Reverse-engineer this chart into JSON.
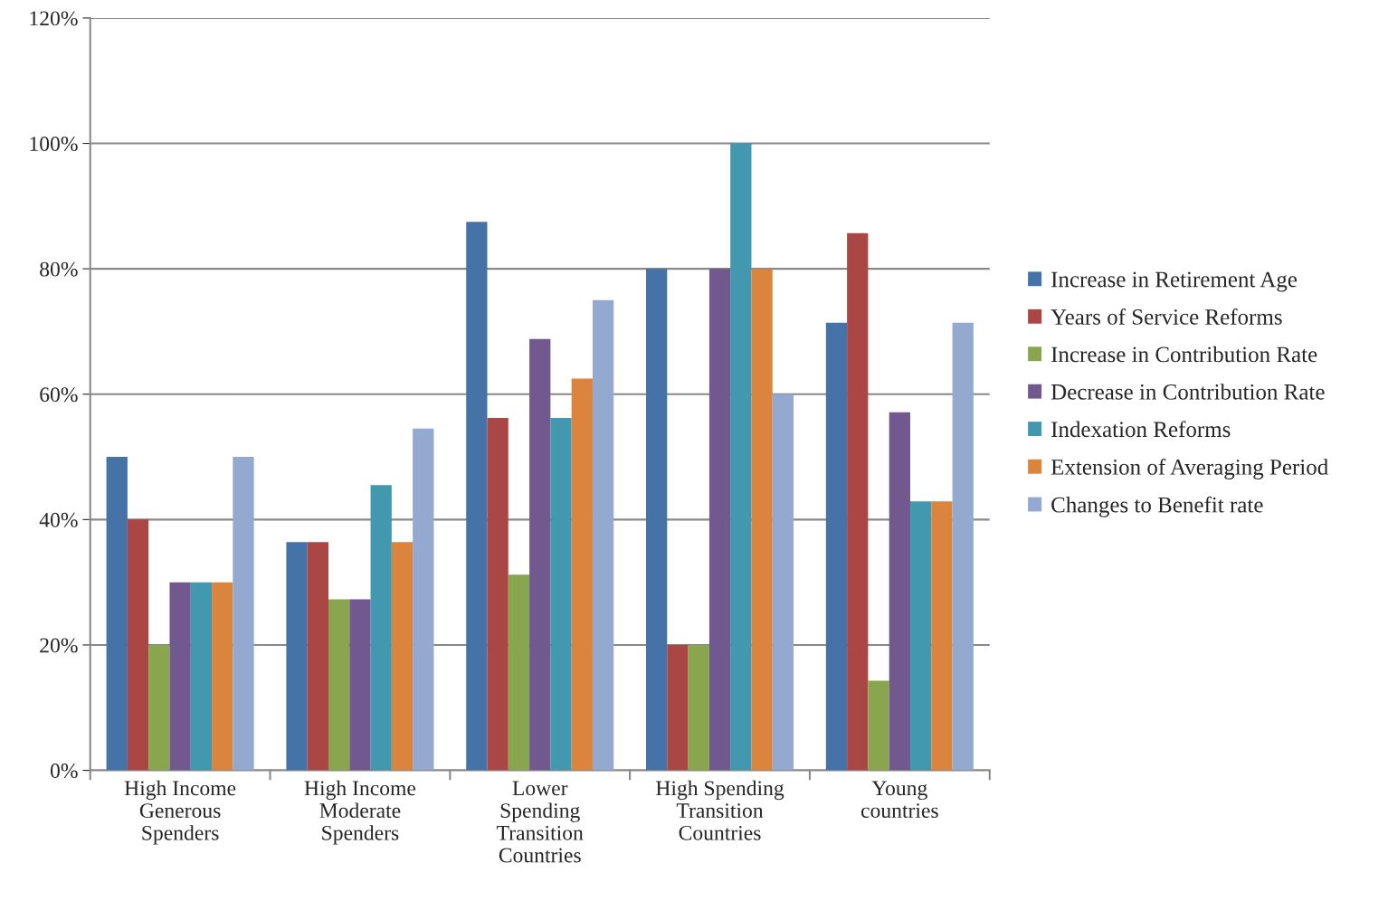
{
  "chart_data": {
    "type": "bar",
    "categories": [
      "High Income\nGenerous\nSpenders",
      "High Income\nModerate\nSpenders",
      "Lower\nSpending\nTransition\nCountries",
      "High Spending\nTransition\nCountries",
      "Young\ncountries"
    ],
    "series": [
      {
        "name": "Increase in Retirement Age",
        "color": "#4572a7",
        "values": [
          50,
          36.4,
          87.5,
          80,
          71.4
        ]
      },
      {
        "name": "Years of Service Reforms",
        "color": "#aa4643",
        "values": [
          40,
          36.4,
          56.2,
          20,
          85.7
        ]
      },
      {
        "name": "Increase in Contribution Rate",
        "color": "#89a54e",
        "values": [
          20,
          27.3,
          31.2,
          20,
          14.3
        ]
      },
      {
        "name": "Decrease in Contribution Rate",
        "color": "#71588f",
        "values": [
          30,
          27.3,
          68.8,
          80,
          57.1
        ]
      },
      {
        "name": "Indexation Reforms",
        "color": "#4198af",
        "values": [
          30,
          45.5,
          56.2,
          100,
          42.9
        ]
      },
      {
        "name": "Extension of Averaging Period",
        "color": "#db843d",
        "values": [
          30,
          36.4,
          62.5,
          80,
          42.9
        ]
      },
      {
        "name": "Changes to Benefit rate",
        "color": "#93a9cf",
        "values": [
          50,
          54.5,
          75,
          60,
          71.4
        ]
      }
    ],
    "ylim": [
      0,
      120
    ],
    "yticks": [
      {
        "value": 0,
        "label": "0%"
      },
      {
        "value": 20,
        "label": "20%"
      },
      {
        "value": 40,
        "label": "40%"
      },
      {
        "value": 60,
        "label": "60%"
      },
      {
        "value": 80,
        "label": "80%"
      },
      {
        "value": 100,
        "label": "100%"
      },
      {
        "value": 120,
        "label": "120%"
      }
    ],
    "grid": "y",
    "legend": "right"
  }
}
